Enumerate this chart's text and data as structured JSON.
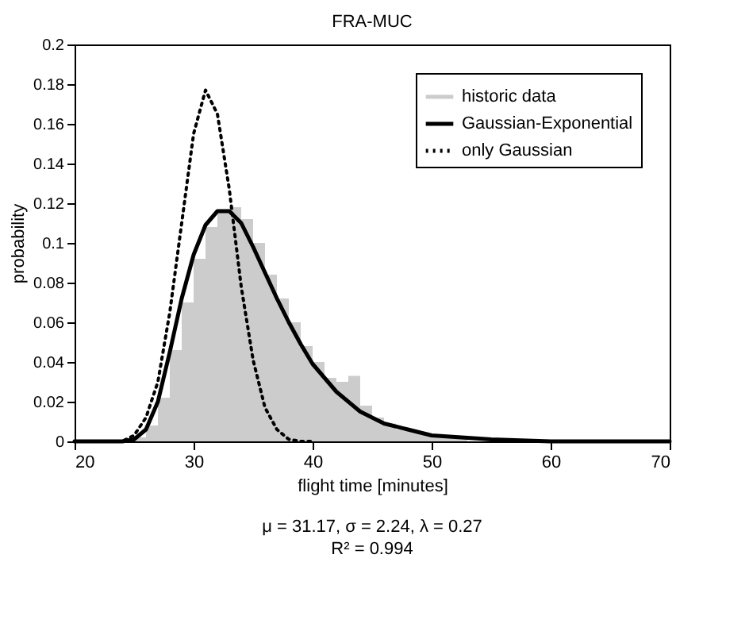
{
  "chart_data": {
    "type": "line",
    "title": "FRA-MUC",
    "xlabel": "flight time [minutes]",
    "ylabel": "probability",
    "xlim": [
      20,
      70
    ],
    "xticks": [
      20,
      30,
      40,
      50,
      60,
      70
    ],
    "ylim": [
      0,
      0.2
    ],
    "yticks": [
      0,
      0.02,
      0.04,
      0.06,
      0.08,
      0.1,
      0.12,
      0.14,
      0.16,
      0.18,
      0.2
    ],
    "grid": false,
    "legend": "top right",
    "annotations": [
      "μ = 31.17, σ = 2.24, λ = 0.27",
      "R² = 0.994"
    ],
    "series": [
      {
        "name": "historic data",
        "type": "histogram",
        "color": "#cccccc",
        "bins": [
          25,
          26,
          27,
          28,
          29,
          30,
          31,
          32,
          33,
          34,
          35,
          36,
          37,
          38,
          39,
          40,
          41,
          42,
          43,
          44,
          45,
          46,
          47,
          48,
          49,
          50,
          51,
          52,
          53,
          54,
          55,
          56,
          57,
          58,
          59
        ],
        "values": [
          0.002,
          0.008,
          0.022,
          0.046,
          0.07,
          0.092,
          0.108,
          0.117,
          0.118,
          0.112,
          0.1,
          0.084,
          0.072,
          0.06,
          0.048,
          0.04,
          0.032,
          0.03,
          0.033,
          0.018,
          0.012,
          0.009,
          0.006,
          0.005,
          0.004,
          0.003,
          0.002,
          0.002,
          null,
          null,
          0.001,
          0.001,
          0.001,
          null
        ]
      },
      {
        "name": "Gaussian-Exponential",
        "color": "#000000",
        "line_style": "solid",
        "x": [
          20,
          24,
          25,
          26,
          27,
          28,
          29,
          30,
          31,
          32,
          33,
          34,
          35,
          36,
          37,
          38,
          39,
          40,
          42,
          44,
          46,
          48,
          50,
          55,
          60,
          70
        ],
        "values": [
          0,
          0,
          0.001,
          0.006,
          0.02,
          0.045,
          0.072,
          0.094,
          0.109,
          0.116,
          0.116,
          0.11,
          0.098,
          0.085,
          0.072,
          0.06,
          0.049,
          0.039,
          0.025,
          0.015,
          0.009,
          0.006,
          0.003,
          0.001,
          0,
          0
        ]
      },
      {
        "name": "only Gaussian",
        "color": "#000000",
        "line_style": "dotted",
        "x": [
          23,
          24,
          25,
          26,
          27,
          28,
          29,
          30,
          31,
          32,
          33,
          34,
          35,
          36,
          37,
          38,
          39,
          40
        ],
        "values": [
          0,
          0,
          0.003,
          0.012,
          0.03,
          0.065,
          0.11,
          0.155,
          0.177,
          0.165,
          0.127,
          0.078,
          0.041,
          0.017,
          0.006,
          0.001,
          0,
          0
        ]
      }
    ]
  }
}
